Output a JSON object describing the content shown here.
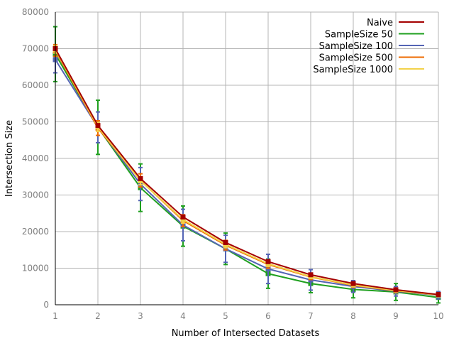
{
  "chart_data": {
    "type": "line",
    "xlabel": "Number of Intersected Datasets",
    "ylabel": "Intersection Size",
    "xlim": [
      1,
      10
    ],
    "ylim": [
      0,
      80000
    ],
    "x": [
      1,
      2,
      3,
      4,
      5,
      6,
      7,
      8,
      9,
      10
    ],
    "xticks": [
      "1",
      "2",
      "3",
      "4",
      "5",
      "6",
      "7",
      "8",
      "9",
      "10"
    ],
    "yticks": [
      "0",
      "10000",
      "20000",
      "30000",
      "40000",
      "50000",
      "60000",
      "70000",
      "80000"
    ],
    "ytick_values": [
      0,
      10000,
      20000,
      30000,
      40000,
      50000,
      60000,
      70000,
      80000
    ],
    "grid": true,
    "legend_position": "top-right",
    "series": [
      {
        "name": "Naive",
        "color": "#a40000",
        "values": [
          70000,
          49000,
          34500,
          24000,
          17000,
          11800,
          8200,
          5800,
          4100,
          2800
        ],
        "errors": null
      },
      {
        "name": "SampleSize 50",
        "color": "#1fa01f",
        "values": [
          68500,
          48500,
          32000,
          21500,
          15300,
          8500,
          5800,
          4200,
          3500,
          2000
        ],
        "errors": [
          7500,
          7400,
          6500,
          5500,
          4300,
          4000,
          2500,
          2300,
          2300,
          1500
        ]
      },
      {
        "name": "SampleSize 100",
        "color": "#5464b4",
        "values": [
          67000,
          48500,
          33000,
          21800,
          15300,
          9800,
          6800,
          5000,
          3700,
          2600
        ],
        "errors": [
          3600,
          4200,
          4500,
          4300,
          3700,
          4000,
          2800,
          1600,
          1300,
          1000
        ]
      },
      {
        "name": "SampleSize 500",
        "color": "#ee6a00",
        "values": [
          69500,
          48300,
          34000,
          23000,
          16300,
          11000,
          7600,
          5300,
          3800,
          2700
        ],
        "errors": [
          1600,
          2000,
          1800,
          1600,
          1300,
          1000,
          700,
          500,
          400,
          300
        ]
      },
      {
        "name": "SampleSize 1000",
        "color": "#f2d24a",
        "values": [
          69800,
          48600,
          33900,
          23300,
          16500,
          11200,
          7700,
          5400,
          3900,
          2700
        ],
        "errors": [
          1000,
          1200,
          1100,
          1000,
          900,
          700,
          500,
          400,
          300,
          250
        ]
      }
    ]
  }
}
